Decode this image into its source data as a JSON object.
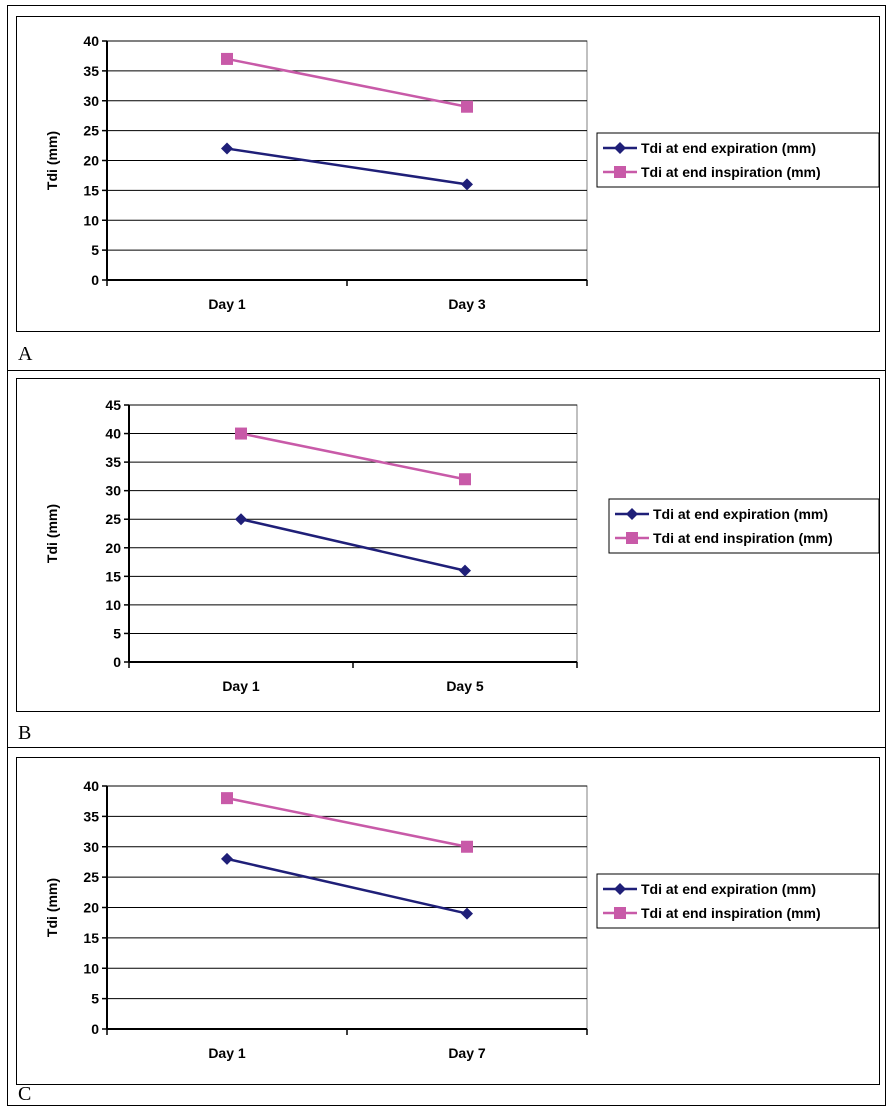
{
  "chart_data": [
    {
      "type": "line",
      "panel_label": "A",
      "categories": [
        "Day 1",
        "Day 3"
      ],
      "ylabel": "Tdi (mm)",
      "ylim": [
        0,
        40
      ],
      "yticks": [
        "0",
        "5",
        "10",
        "15",
        "20",
        "25",
        "30",
        "35",
        "40"
      ],
      "grid": true,
      "legend_placement": "right",
      "series": [
        {
          "name": "Tdi at end expiration (mm)",
          "values": [
            22,
            16
          ],
          "color": "#1f1f78",
          "marker": "diamond"
        },
        {
          "name": "Tdi at end inspiration (mm)",
          "values": [
            37,
            29
          ],
          "color": "#c85aa8",
          "marker": "square"
        }
      ]
    },
    {
      "type": "line",
      "panel_label": "B",
      "categories": [
        "Day 1",
        "Day 5"
      ],
      "ylabel": "Tdi (mm)",
      "ylim": [
        0,
        45
      ],
      "yticks": [
        "0",
        "5",
        "10",
        "15",
        "20",
        "25",
        "30",
        "35",
        "40",
        "45"
      ],
      "grid": true,
      "legend_placement": "right",
      "series": [
        {
          "name": "Tdi at end expiration (mm)",
          "values": [
            25,
            16
          ],
          "color": "#1f1f78",
          "marker": "diamond"
        },
        {
          "name": "Tdi at end inspiration (mm)",
          "values": [
            40,
            32
          ],
          "color": "#c85aa8",
          "marker": "square"
        }
      ]
    },
    {
      "type": "line",
      "panel_label": "C",
      "categories": [
        "Day 1",
        "Day 7"
      ],
      "ylabel": "Tdi (mm)",
      "ylim": [
        0,
        40
      ],
      "yticks": [
        "0",
        "5",
        "10",
        "15",
        "20",
        "25",
        "30",
        "35",
        "40"
      ],
      "grid": true,
      "legend_placement": "right",
      "series": [
        {
          "name": "Tdi at end expiration (mm)",
          "values": [
            28,
            19
          ],
          "color": "#1f1f78",
          "marker": "diamond"
        },
        {
          "name": "Tdi at end inspiration (mm)",
          "values": [
            38,
            30
          ],
          "color": "#c85aa8",
          "marker": "square"
        }
      ]
    }
  ]
}
